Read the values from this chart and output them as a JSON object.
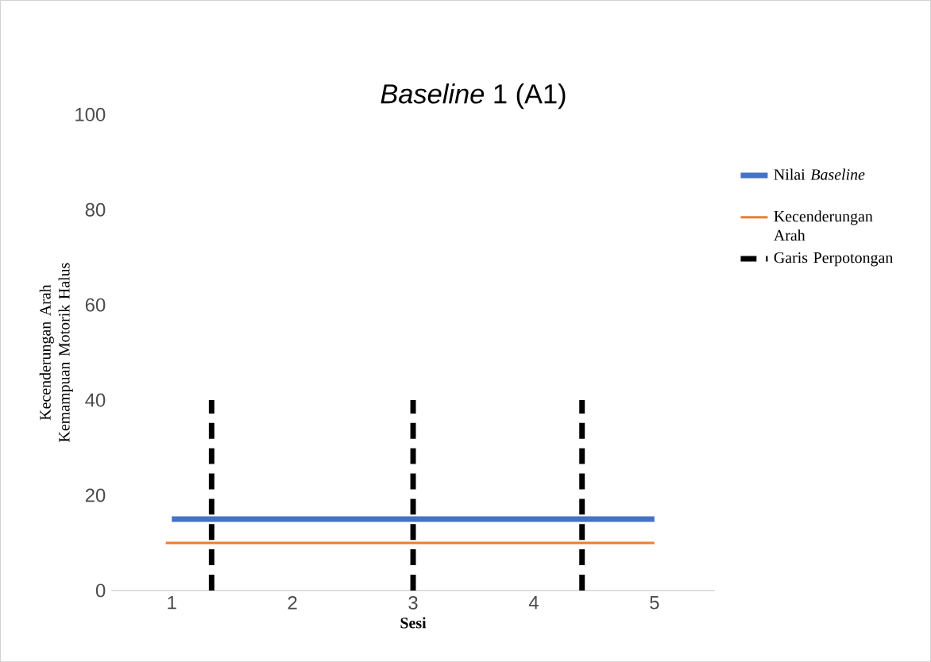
{
  "chart_data": {
    "type": "line",
    "title": "*Baseline* 1 (A1)",
    "xlabel": "Sesi",
    "ylabel": "Kecenderungan Arah Kemampuan Motorik Halus",
    "xlim": [
      0.5,
      5.5
    ],
    "xticks": [
      1,
      2,
      3,
      4,
      5
    ],
    "ylim": [
      0,
      100
    ],
    "yticks": [
      0,
      20,
      40,
      60,
      80,
      100
    ],
    "grid": false,
    "legend": "right",
    "marker": "none",
    "series": [
      {
        "name": "Nilai *Baseline*",
        "color": "#4472c4",
        "x": [
          1,
          5
        ],
        "values": [
          15,
          15
        ]
      },
      {
        "name": "Kecenderungan Arah",
        "color": "#ed7d31",
        "x": [
          0.95,
          5
        ],
        "values": [
          10,
          10
        ]
      },
      {
        "name": "Garis Perpotongan",
        "color": "#000000",
        "line_style": "dashed",
        "x": [
          1.33,
          1.33,
          2,
          3,
          3,
          3.7,
          4.4,
          4.4
        ],
        "values": [
          0,
          40,
          null,
          0,
          40,
          null,
          0,
          40
        ]
      }
    ]
  }
}
